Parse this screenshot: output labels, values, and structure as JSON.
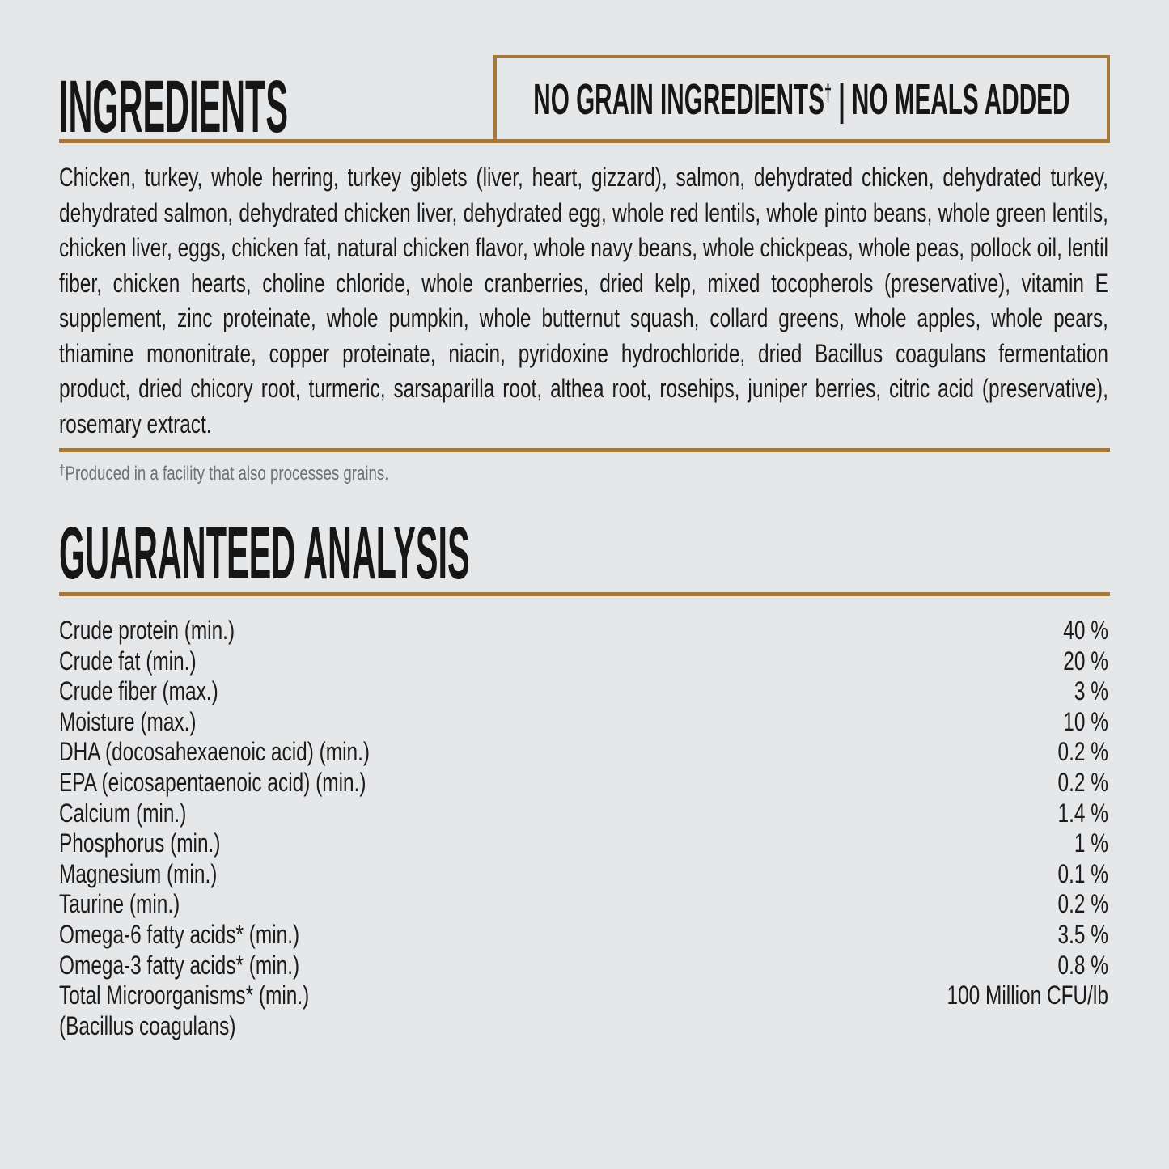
{
  "page": {
    "background": "#E6E7E8",
    "accent": "#A5783C",
    "text_color": "#1B1B1C",
    "muted_color": "#6F7174"
  },
  "ingredients": {
    "title": "INGREDIENTS",
    "callout": {
      "part1": "NO GRAIN INGREDIENTS",
      "dagger": "†",
      "part2": " | NO MEALS ADDED"
    },
    "text": "Chicken, turkey, whole herring, turkey giblets (liver, heart, gizzard), salmon, dehydrated chicken, dehydrated turkey, dehydrated salmon, dehydrated chicken liver, dehydrated egg, whole red lentils, whole pinto beans, whole green lentils, chicken liver, eggs, chicken fat, natural chicken flavor, whole navy beans, whole chickpeas, whole peas, pollock oil, lentil fiber, chicken hearts, choline chloride, whole cranberries, dried kelp, mixed tocopherols (preservative), vitamin E supplement, zinc proteinate, whole pumpkin, whole butternut squash, collard greens, whole apples, whole pears, thiamine mononitrate, copper proteinate, niacin, pyridoxine hydrochloride, dried Bacillus coagulans fermentation product, dried chicory root, turmeric, sarsaparilla root, althea root, rosehips, juniper berries, citric acid (preservative), rosemary extract.",
    "footnote": {
      "dagger": "†",
      "text": "Produced in a facility that also processes grains."
    }
  },
  "guaranteed_analysis": {
    "title": "GUARANTEED ANALYSIS",
    "rows": [
      {
        "label": "Crude protein (min.)",
        "value": "40 %"
      },
      {
        "label": "Crude fat (min.)",
        "value": "20 %"
      },
      {
        "label": "Crude fiber (max.)",
        "value": "3 %"
      },
      {
        "label": "Moisture (max.)",
        "value": "10 %"
      },
      {
        "label": "DHA (docosahexaenoic acid) (min.)",
        "value": "0.2 %"
      },
      {
        "label": "EPA (eicosapentaenoic acid) (min.)",
        "value": "0.2 %"
      },
      {
        "label": "Calcium (min.)",
        "value": "1.4 %"
      },
      {
        "label": "Phosphorus (min.)",
        "value": "1 %"
      },
      {
        "label": "Magnesium (min.)",
        "value": "0.1 %"
      },
      {
        "label": "Taurine (min.)",
        "value": "0.2 %"
      },
      {
        "label": "Omega-6 fatty acids* (min.)",
        "value": "3.5 %"
      },
      {
        "label": "Omega-3 fatty acids* (min.)",
        "value": "0.8 %"
      },
      {
        "label": "Total Microorganisms* (min.)",
        "value": "100 Million CFU/lb"
      },
      {
        "label": "(Bacillus coagulans)",
        "value": ""
      }
    ]
  }
}
